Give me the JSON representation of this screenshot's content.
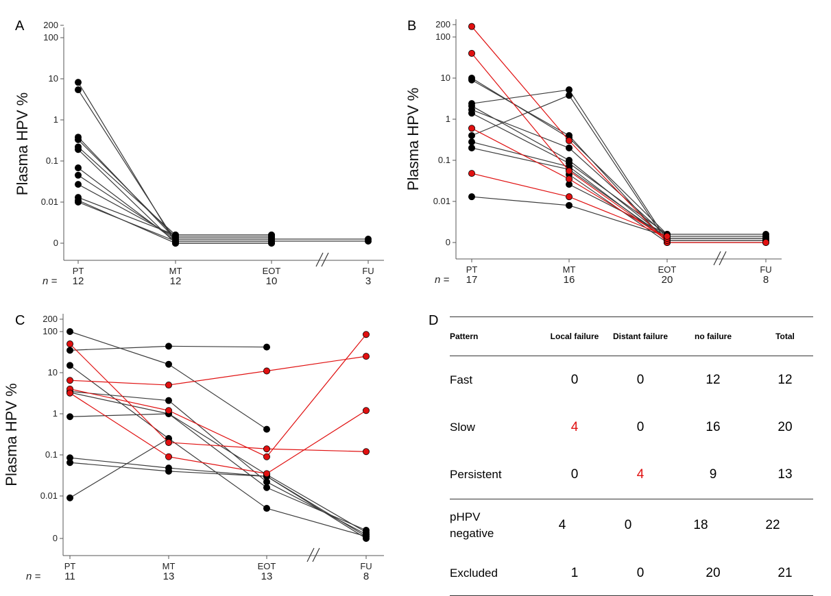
{
  "chart_data": [
    {
      "panel": "A",
      "type": "line",
      "scale": "log (with 0 baseline)",
      "ylabel": "Plasma HPV %",
      "yticks": [
        "200",
        "100",
        "10",
        "1",
        "0.1",
        "0.01",
        "0"
      ],
      "categories": [
        "PT",
        "MT",
        "EOT",
        "FU"
      ],
      "n_label": "n =",
      "n": [
        "12",
        "12",
        "10",
        "3"
      ],
      "colors": {
        "non_failure": "#000000",
        "failure": "#e01010"
      },
      "series": [
        {
          "values": [
            8.2,
            0,
            0,
            null
          ],
          "failure": false
        },
        {
          "values": [
            5.4,
            0,
            0,
            0
          ],
          "failure": false
        },
        {
          "values": [
            0.38,
            0,
            0,
            0
          ],
          "failure": false
        },
        {
          "values": [
            0.33,
            0,
            0,
            null
          ],
          "failure": false
        },
        {
          "values": [
            0.22,
            0,
            0,
            null
          ],
          "failure": false
        },
        {
          "values": [
            0.19,
            0,
            0,
            null
          ],
          "failure": false
        },
        {
          "values": [
            0.068,
            0,
            0,
            null
          ],
          "failure": false
        },
        {
          "values": [
            0.045,
            0,
            0,
            null
          ],
          "failure": false
        },
        {
          "values": [
            0.027,
            0,
            0,
            null
          ],
          "failure": false
        },
        {
          "values": [
            0.013,
            0,
            0,
            null
          ],
          "failure": false
        },
        {
          "values": [
            0.011,
            0,
            null,
            null
          ],
          "failure": false
        },
        {
          "values": [
            0.01,
            0,
            null,
            null
          ],
          "failure": false
        }
      ]
    },
    {
      "panel": "B",
      "type": "line",
      "scale": "log (with 0 baseline)",
      "ylabel": "Plasma HPV %",
      "yticks": [
        "200",
        "100",
        "10",
        "1",
        "0.1",
        "0.01",
        "0"
      ],
      "categories": [
        "PT",
        "MT",
        "EOT",
        "FU"
      ],
      "n_label": "n =",
      "n": [
        "17",
        "16",
        "20",
        "8"
      ],
      "colors": {
        "non_failure": "#000000",
        "failure": "#e01010"
      },
      "series": [
        {
          "values": [
            180,
            0.3,
            0,
            0
          ],
          "failure": true
        },
        {
          "values": [
            40,
            0.055,
            0,
            null
          ],
          "failure": true
        },
        {
          "values": [
            0.6,
            0.035,
            0,
            null
          ],
          "failure": true
        },
        {
          "values": [
            0.048,
            0.013,
            0,
            null
          ],
          "failure": true
        },
        {
          "values": [
            10,
            0.35,
            0,
            0
          ],
          "failure": false
        },
        {
          "values": [
            9,
            0.4,
            0,
            null
          ],
          "failure": false
        },
        {
          "values": [
            2.4,
            5.2,
            0,
            0
          ],
          "failure": false
        },
        {
          "values": [
            2.1,
            0.1,
            0,
            0
          ],
          "failure": false
        },
        {
          "values": [
            1.7,
            0.2,
            0,
            0
          ],
          "failure": false
        },
        {
          "values": [
            1.4,
            0.085,
            0,
            null
          ],
          "failure": false
        },
        {
          "values": [
            0.4,
            3.8,
            0,
            0
          ],
          "failure": false
        },
        {
          "values": [
            0.28,
            0.07,
            0,
            0
          ],
          "failure": false
        },
        {
          "values": [
            0.2,
            0.06,
            0,
            0
          ],
          "failure": false
        },
        {
          "values": [
            0.013,
            0.008,
            0,
            null
          ],
          "failure": false
        },
        {
          "values": [
            null,
            0.026,
            0,
            null
          ],
          "failure": false
        },
        {
          "values": [
            null,
            0.045,
            0,
            null
          ],
          "failure": false
        }
      ]
    },
    {
      "panel": "C",
      "type": "line",
      "scale": "log (with 0 baseline)",
      "ylabel": "Plasma HPV %",
      "yticks": [
        "200",
        "100",
        "10",
        "1",
        "0.1",
        "0.01",
        "0"
      ],
      "categories": [
        "PT",
        "MT",
        "EOT",
        "FU"
      ],
      "n_label": "n =",
      "n": [
        "11",
        "13",
        "13",
        "8"
      ],
      "colors": {
        "non_failure": "#000000",
        "failure": "#e01010"
      },
      "series": [
        {
          "values": [
            50,
            0.2,
            0.14,
            0.12
          ],
          "failure": true
        },
        {
          "values": [
            6.5,
            5,
            11,
            25
          ],
          "failure": true
        },
        {
          "values": [
            4,
            1.2,
            0.09,
            85
          ],
          "failure": true
        },
        {
          "values": [
            3.2,
            0.09,
            0.035,
            1.2
          ],
          "failure": true
        },
        {
          "values": [
            100,
            16,
            0.42,
            null
          ],
          "failure": false
        },
        {
          "values": [
            35,
            44,
            42,
            null
          ],
          "failure": false
        },
        {
          "values": [
            15,
            0.25,
            0.005,
            0
          ],
          "failure": false
        },
        {
          "values": [
            3.5,
            2.1,
            0.022,
            0
          ],
          "failure": false
        },
        {
          "values": [
            3.3,
            1.0,
            0.033,
            0
          ],
          "failure": false
        },
        {
          "values": [
            0.85,
            1.0,
            0.016,
            0
          ],
          "failure": false
        },
        {
          "values": [
            0.085,
            0.048,
            0.03,
            0
          ],
          "failure": false
        },
        {
          "values": [
            0.065,
            0.04,
            0.03,
            0
          ],
          "failure": false
        },
        {
          "values": [
            0.009,
            0.25,
            null,
            0
          ],
          "failure": false
        }
      ]
    }
  ],
  "panel_labels": {
    "A": "A",
    "B": "B",
    "C": "C",
    "D": "D"
  },
  "axis_break": "//",
  "table": {
    "header": [
      "Pattern",
      "Local failure",
      "Distant failure",
      "no failure",
      "Total"
    ],
    "rows": [
      {
        "label": "Fast",
        "cells": [
          "0",
          "0",
          "12",
          "12"
        ],
        "red": [
          false,
          false,
          false,
          false
        ]
      },
      {
        "label": "Slow",
        "cells": [
          "4",
          "0",
          "16",
          "20"
        ],
        "red": [
          true,
          false,
          false,
          false
        ]
      },
      {
        "label": "Persistent",
        "cells": [
          "0",
          "4",
          "9",
          "13"
        ],
        "red": [
          false,
          true,
          false,
          false
        ]
      },
      {
        "label": "pHPV negative",
        "cells": [
          "4",
          "0",
          "18",
          "22"
        ],
        "red": [
          false,
          false,
          false,
          false
        ]
      },
      {
        "label": "Excluded",
        "cells": [
          "1",
          "0",
          "20",
          "21"
        ],
        "red": [
          false,
          false,
          false,
          false
        ]
      }
    ]
  }
}
